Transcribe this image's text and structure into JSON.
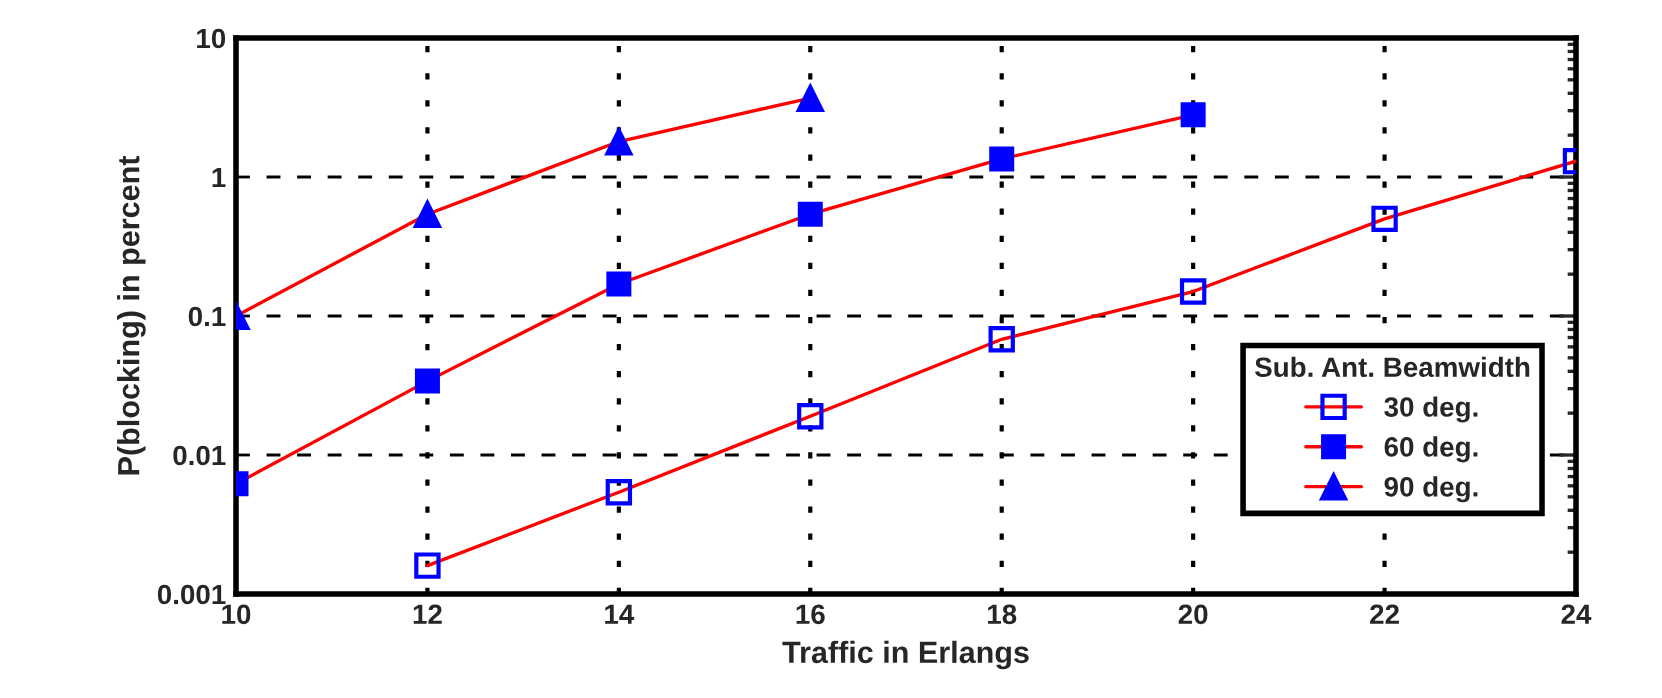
{
  "chart_data": {
    "type": "line",
    "xlabel": "Traffic in Erlangs",
    "ylabel": "P(blocking) in percent",
    "legend_title": "Sub. Ant. Beamwidth",
    "log": "y",
    "xlim": [
      10,
      24
    ],
    "xticks": [
      10,
      12,
      14,
      16,
      18,
      20,
      22,
      24
    ],
    "ylim": [
      0.001,
      10
    ],
    "yticks": [
      0.001,
      0.01,
      0.1,
      1,
      10
    ],
    "grid": true,
    "legend": "lower right",
    "line_style": "solid",
    "series": [
      {
        "name": "30 deg.",
        "color": "#0000ff",
        "marker": "square",
        "x": [
          12,
          14,
          16,
          18,
          20,
          22,
          24
        ],
        "values": [
          0.0016,
          0.0054,
          0.019,
          0.068,
          0.15,
          0.5,
          1.3
        ]
      },
      {
        "name": "60 deg.",
        "color": "#0000ff",
        "marker": "square",
        "x": [
          10,
          12,
          14,
          16,
          18,
          20
        ],
        "values": [
          0.0062,
          0.034,
          0.17,
          0.54,
          1.35,
          2.8
        ]
      },
      {
        "name": "90 deg.",
        "color": "#0000ff",
        "marker": "triangle",
        "x": [
          10,
          12,
          14,
          16
        ],
        "values": [
          0.1,
          0.54,
          1.8,
          3.7
        ]
      }
    ]
  }
}
